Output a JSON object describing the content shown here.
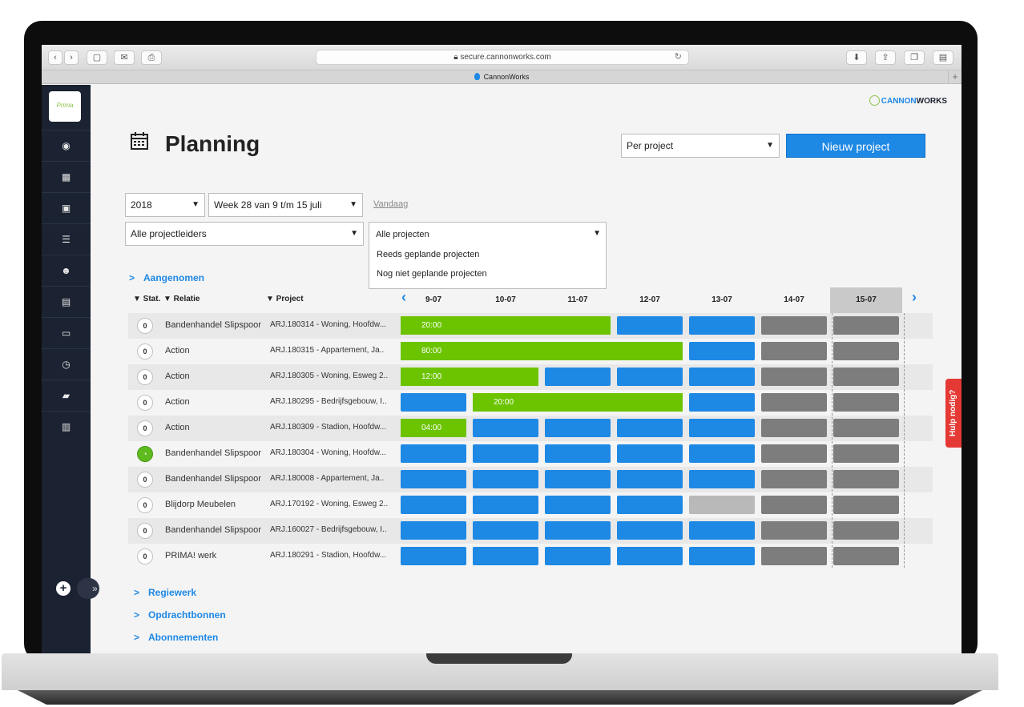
{
  "browser": {
    "url": "secure.cannonworks.com",
    "tab_title": "CannonWorks"
  },
  "sidebar": {
    "logo_text": "Prima",
    "items": [
      {
        "icon": "dashboard-icon",
        "glyph": "◉"
      },
      {
        "icon": "calendar-icon",
        "glyph": "▦"
      },
      {
        "icon": "briefcase-icon",
        "glyph": "▣"
      },
      {
        "icon": "list-icon",
        "glyph": "☰"
      },
      {
        "icon": "users-icon",
        "glyph": "☻"
      },
      {
        "icon": "document-icon",
        "glyph": "▤"
      },
      {
        "icon": "inbox-icon",
        "glyph": "▭"
      },
      {
        "icon": "clock-icon",
        "glyph": "◷"
      },
      {
        "icon": "book-icon",
        "glyph": "▰"
      },
      {
        "icon": "chart-icon",
        "glyph": "▥"
      }
    ],
    "add_glyph": "+",
    "expand_glyph": "»"
  },
  "brand": {
    "part1": "CANNON",
    "part2": "WORKS"
  },
  "header": {
    "title": "Planning",
    "view_select": "Per project",
    "new_button": "Nieuw project"
  },
  "filters": {
    "year": "2018",
    "week": "Week 28 van 9 t/m 15 juli",
    "today_link": "Vandaag",
    "leaders": "Alle projectleiders",
    "projects": "Alle projecten",
    "project_options": [
      "Reeds geplande projecten",
      "Nog niet geplande projecten"
    ]
  },
  "sections": {
    "aangenomen": "Aangenomen",
    "regiewerk": "Regiewerk",
    "opdrachtbonnen": "Opdrachtbonnen",
    "abonnementen": "Abonnementen"
  },
  "table": {
    "headers": {
      "stat": "▼ Stat.",
      "relatie": "▼ Relatie",
      "project": "▼ Project"
    },
    "days": [
      "9-07",
      "10-07",
      "11-07",
      "12-07",
      "13-07",
      "14-07",
      "15-07"
    ],
    "today_index": 6,
    "rows": [
      {
        "stat": "0",
        "relatie": "Bandenhandel Slipspoor",
        "project": "ARJ.180314 - Woning, Hoofdw...",
        "cells": [
          "bar",
          "bar",
          "bar",
          "blue",
          "blue",
          "grey",
          "grey"
        ],
        "bar_start": 0,
        "bar_span": 3,
        "bar_label": "20:00"
      },
      {
        "stat": "0",
        "relatie": "Action",
        "project": "ARJ.180315 - Appartement, Ja..",
        "cells": [
          "bar",
          "bar",
          "bar",
          "bar",
          "blue",
          "grey",
          "grey"
        ],
        "bar_start": 0,
        "bar_span": 4,
        "bar_label": "80:00"
      },
      {
        "stat": "0",
        "relatie": "Action",
        "project": "ARJ.180305 - Woning, Esweg 2..",
        "cells": [
          "bar",
          "bar",
          "blue",
          "blue",
          "blue",
          "grey",
          "grey"
        ],
        "bar_start": 0,
        "bar_span": 2,
        "bar_label": "12:00"
      },
      {
        "stat": "0",
        "relatie": "Action",
        "project": "ARJ.180295 - Bedrijfsgebouw, I..",
        "cells": [
          "blue",
          "bar",
          "bar",
          "bar",
          "blue",
          "grey",
          "grey"
        ],
        "bar_start": 1,
        "bar_span": 3,
        "bar_label": "20:00"
      },
      {
        "stat": "0",
        "relatie": "Action",
        "project": "ARJ.180309 - Stadion, Hoofdw...",
        "cells": [
          "bar",
          "blue",
          "blue",
          "blue",
          "blue",
          "grey",
          "grey"
        ],
        "bar_start": 0,
        "bar_span": 1,
        "bar_label": "04:00"
      },
      {
        "stat": "",
        "relatie": "Bandenhandel Slipspoor",
        "project": "ARJ.180304 - Woning, Hoofdw...",
        "cells": [
          "blue",
          "blue",
          "blue",
          "blue",
          "blue",
          "grey",
          "grey"
        ]
      },
      {
        "stat": "0",
        "relatie": "Bandenhandel Slipspoor",
        "project": "ARJ.180008 - Appartement, Ja..",
        "cells": [
          "blue",
          "blue",
          "blue",
          "blue",
          "blue",
          "grey",
          "grey"
        ]
      },
      {
        "stat": "0",
        "relatie": "Blijdorp Meubelen",
        "project": "ARJ.170192 - Woning, Esweg 2..",
        "cells": [
          "blue",
          "blue",
          "blue",
          "blue",
          "lgrey",
          "grey",
          "grey"
        ]
      },
      {
        "stat": "0",
        "relatie": "Bandenhandel Slipspoor",
        "project": "ARJ.160027 - Bedrijfsgebouw, I..",
        "cells": [
          "blue",
          "blue",
          "blue",
          "blue",
          "blue",
          "grey",
          "grey"
        ]
      },
      {
        "stat": "0",
        "relatie": "PRIMA! werk",
        "project": "ARJ.180291 - Stadion, Hoofdw...",
        "cells": [
          "blue",
          "blue",
          "blue",
          "blue",
          "blue",
          "grey",
          "grey"
        ]
      }
    ]
  },
  "help_tab": "Hulp nodig?",
  "colors": {
    "accent": "#1e88e5",
    "bar": "#6cc400",
    "weekend": "#7d7d7d",
    "sidebar": "#1b2231"
  }
}
